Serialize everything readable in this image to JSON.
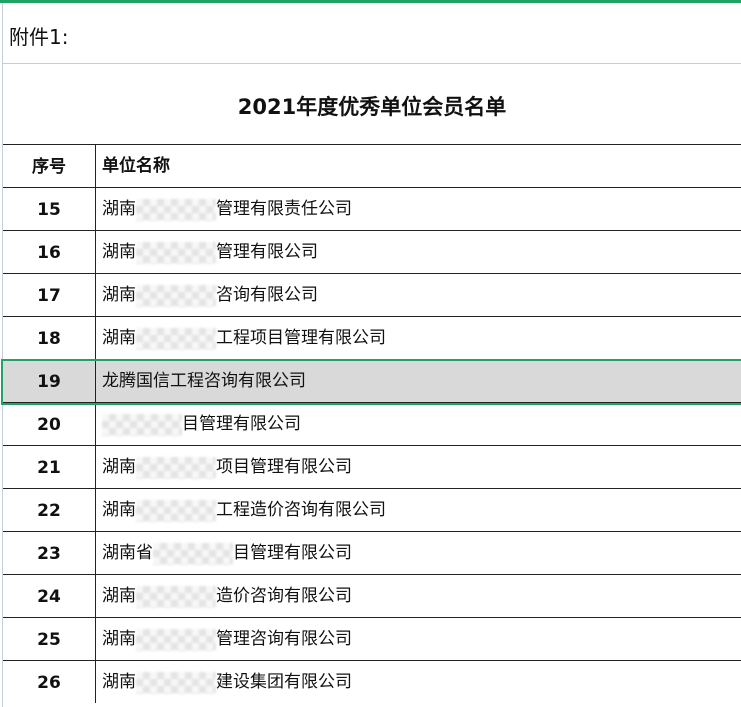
{
  "attachment_label": "附件1:",
  "title": "2021年度优秀单位会员名单",
  "headers": {
    "no": "序号",
    "name": "单位名称"
  },
  "selected_row": 19,
  "accent_color": "#21a366",
  "rows": [
    {
      "no": "15",
      "prefix": "湖南",
      "redacted": true,
      "suffix": "管理有限责任公司"
    },
    {
      "no": "16",
      "prefix": "湖南",
      "redacted": true,
      "suffix": "管理有限公司"
    },
    {
      "no": "17",
      "prefix": "湖南",
      "redacted": true,
      "suffix": "咨询有限公司"
    },
    {
      "no": "18",
      "prefix": "湖南",
      "redacted": true,
      "suffix": "工程项目管理有限公司"
    },
    {
      "no": "19",
      "prefix": "龙腾国信工程咨询有限公司",
      "redacted": false,
      "suffix": ""
    },
    {
      "no": "20",
      "prefix": "",
      "redacted": true,
      "suffix": "目管理有限公司"
    },
    {
      "no": "21",
      "prefix": "湖南",
      "redacted": true,
      "suffix": "项目管理有限公司"
    },
    {
      "no": "22",
      "prefix": "湖南",
      "redacted": true,
      "suffix": "工程造价咨询有限公司"
    },
    {
      "no": "23",
      "prefix": "湖南省",
      "redacted": true,
      "suffix": "目管理有限公司"
    },
    {
      "no": "24",
      "prefix": "湖南",
      "redacted": true,
      "suffix": "造价咨询有限公司"
    },
    {
      "no": "25",
      "prefix": "湖南",
      "redacted": true,
      "suffix": "管理咨询有限公司"
    },
    {
      "no": "26",
      "prefix": "湖南",
      "redacted": true,
      "suffix": "建设集团有限公司"
    }
  ]
}
